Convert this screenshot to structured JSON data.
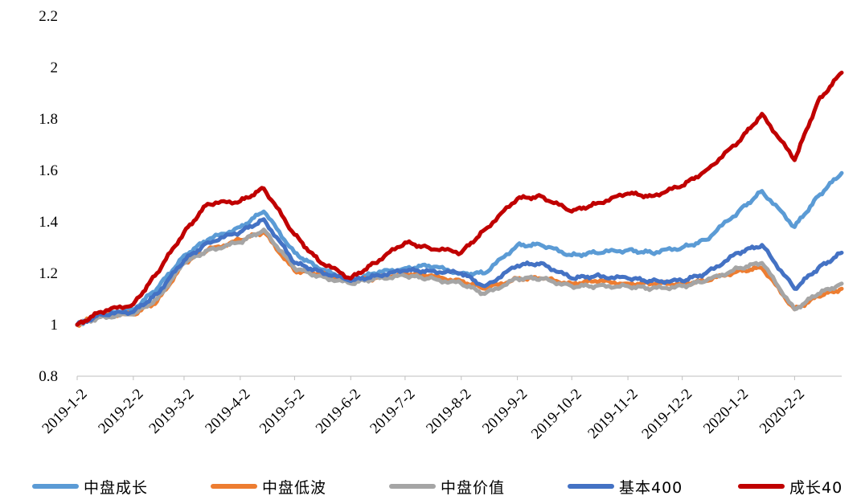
{
  "chart_data": {
    "type": "line",
    "title": "",
    "xlabel": "",
    "ylabel": "",
    "ylim": [
      0.8,
      2.2
    ],
    "yticks": [
      "0.8",
      "1",
      "1.2",
      "1.4",
      "1.6",
      "1.8",
      "2",
      "2.2"
    ],
    "grid": false,
    "legend_position": "bottom",
    "x_tick_labels": [
      "2019-1-2",
      "2019-2-2",
      "2019-3-2",
      "2019-4-2",
      "2019-5-2",
      "2019-6-2",
      "2019-7-2",
      "2019-8-2",
      "2019-9-2",
      "2019-10-2",
      "2019-11-2",
      "2019-12-2",
      "2020-1-2",
      "2020-2-2"
    ],
    "x": [
      "2019-1-2",
      "2019-1-15",
      "2019-2-2",
      "2019-2-15",
      "2019-3-2",
      "2019-3-15",
      "2019-4-2",
      "2019-4-15",
      "2019-5-2",
      "2019-5-15",
      "2019-6-2",
      "2019-6-15",
      "2019-7-2",
      "2019-7-15",
      "2019-8-2",
      "2019-8-15",
      "2019-9-2",
      "2019-9-15",
      "2019-10-2",
      "2019-10-15",
      "2019-11-2",
      "2019-11-15",
      "2019-12-2",
      "2019-12-15",
      "2020-1-2",
      "2020-1-15",
      "2020-2-2",
      "2020-2-15",
      "2020-2-28"
    ],
    "series": [
      {
        "name": "中盘成长",
        "color": "#5B9BD5",
        "values": [
          1.0,
          1.04,
          1.06,
          1.14,
          1.27,
          1.33,
          1.38,
          1.44,
          1.28,
          1.22,
          1.17,
          1.2,
          1.22,
          1.23,
          1.2,
          1.2,
          1.31,
          1.31,
          1.27,
          1.28,
          1.29,
          1.28,
          1.3,
          1.33,
          1.44,
          1.52,
          1.38,
          1.5,
          1.59
        ]
      },
      {
        "name": "中盘低波",
        "color": "#ED7D31",
        "values": [
          1.0,
          1.04,
          1.04,
          1.09,
          1.24,
          1.29,
          1.33,
          1.36,
          1.21,
          1.2,
          1.17,
          1.18,
          1.2,
          1.19,
          1.17,
          1.14,
          1.18,
          1.18,
          1.16,
          1.17,
          1.16,
          1.16,
          1.16,
          1.17,
          1.21,
          1.22,
          1.06,
          1.11,
          1.14
        ]
      },
      {
        "name": "中盘价值",
        "color": "#A5A5A5",
        "values": [
          1.0,
          1.03,
          1.04,
          1.1,
          1.24,
          1.29,
          1.32,
          1.37,
          1.22,
          1.19,
          1.16,
          1.18,
          1.19,
          1.18,
          1.16,
          1.12,
          1.18,
          1.18,
          1.15,
          1.15,
          1.15,
          1.14,
          1.15,
          1.17,
          1.22,
          1.24,
          1.06,
          1.12,
          1.16
        ]
      },
      {
        "name": "基本400",
        "color": "#4472C4",
        "values": [
          1.0,
          1.04,
          1.05,
          1.12,
          1.25,
          1.32,
          1.36,
          1.41,
          1.24,
          1.21,
          1.17,
          1.19,
          1.21,
          1.21,
          1.2,
          1.15,
          1.23,
          1.24,
          1.18,
          1.19,
          1.18,
          1.17,
          1.17,
          1.2,
          1.28,
          1.31,
          1.14,
          1.22,
          1.28
        ]
      },
      {
        "name": "成长40",
        "color": "#C00000",
        "values": [
          1.0,
          1.05,
          1.08,
          1.2,
          1.36,
          1.47,
          1.48,
          1.53,
          1.35,
          1.25,
          1.18,
          1.24,
          1.32,
          1.3,
          1.28,
          1.37,
          1.49,
          1.5,
          1.44,
          1.47,
          1.51,
          1.5,
          1.54,
          1.6,
          1.71,
          1.82,
          1.64,
          1.87,
          1.98
        ]
      }
    ]
  }
}
